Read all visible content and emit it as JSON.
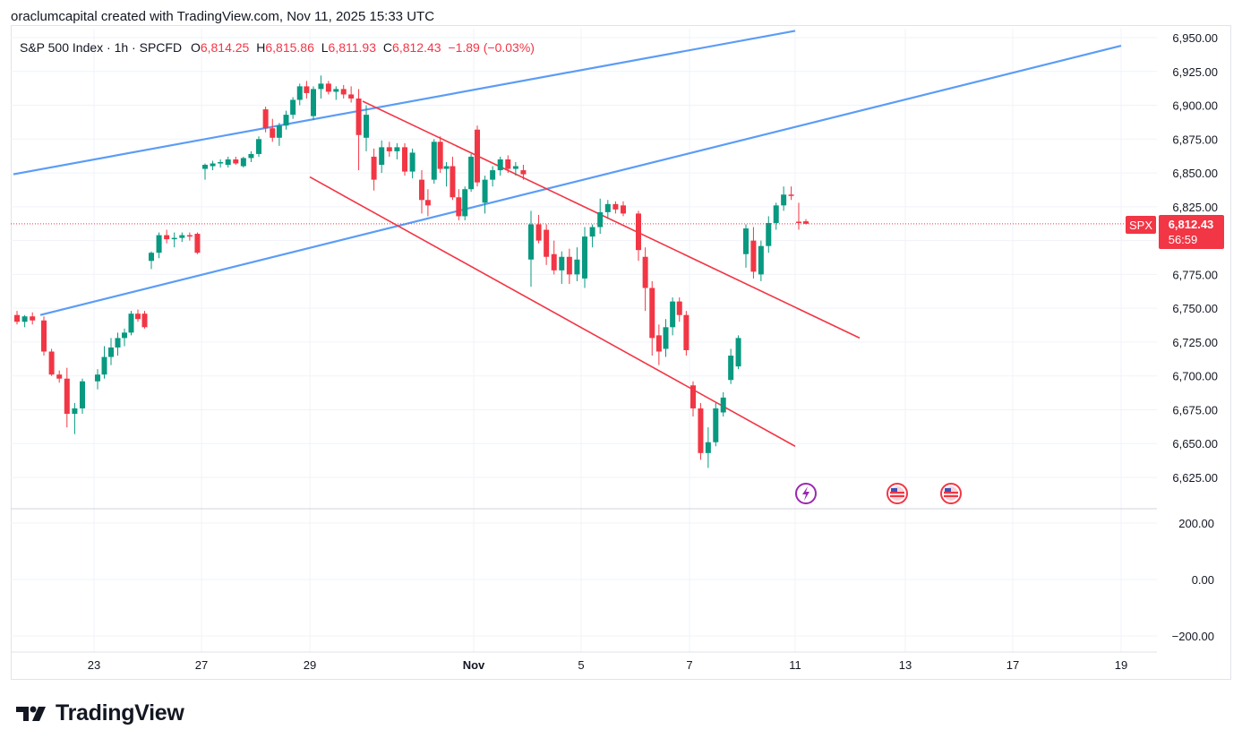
{
  "header": {
    "attribution": "oraclumcapital created with TradingView.com, Nov 11, 2025 15:33 UTC"
  },
  "legend": {
    "symbol": "S&P 500 Index · 1h · SPCFD",
    "o_label": "O",
    "o_value": "6,814.25",
    "h_label": "H",
    "h_value": "6,815.86",
    "l_label": "L",
    "l_value": "6,811.93",
    "c_label": "C",
    "c_value": "6,812.43",
    "change": "−1.89 (−0.03%)"
  },
  "price_badge": {
    "ticker": "SPX",
    "price": "6,812.43",
    "countdown": "56:59"
  },
  "footer": {
    "brand": "TradingView"
  },
  "colors": {
    "up": "#089981",
    "down": "#f23645",
    "channel_blue": "#5b9cf6",
    "channel_red": "#f23645",
    "grid": "#f0f3fa"
  },
  "chart_data": {
    "type": "candlestick",
    "symbol": "SPX",
    "timeframe": "1h",
    "ylim": [
      6615,
      6960
    ],
    "price_ticks": [
      "6,625.00",
      "6,650.00",
      "6,675.00",
      "6,700.00",
      "6,725.00",
      "6,750.00",
      "6,775.00",
      "6,800.00",
      "6,825.00",
      "6,850.00",
      "6,875.00",
      "6,900.00",
      "6,925.00",
      "6,950.00"
    ],
    "price_tick_values": [
      6625,
      6650,
      6675,
      6700,
      6725,
      6750,
      6775,
      6800,
      6825,
      6850,
      6875,
      6900,
      6925,
      6950
    ],
    "indicator_ticks": [
      "200.00",
      "0.00",
      "−200.00"
    ],
    "indicator_tick_values": [
      200,
      0,
      -200
    ],
    "x_ticks": [
      "23",
      "27",
      "29",
      "Nov",
      "5",
      "7",
      "11",
      "13",
      "17",
      "19"
    ],
    "x_tick_days": [
      "Oct 23",
      "Oct 27",
      "Oct 29",
      "Nov 3",
      "Nov 5",
      "Nov 7",
      "Nov 11",
      "Nov 13",
      "Nov 17",
      "Nov 19"
    ],
    "last_price": 6812.43,
    "candles": [
      {
        "d": "Oct 21",
        "o": 6745,
        "h": 6748,
        "l": 6738,
        "c": 6740
      },
      {
        "d": "Oct 21",
        "o": 6740,
        "h": 6745,
        "l": 6736,
        "c": 6744
      },
      {
        "d": "Oct 21",
        "o": 6744,
        "h": 6747,
        "l": 6738,
        "c": 6741
      },
      {
        "d": "Oct 22",
        "o": 6741,
        "h": 6744,
        "l": 6715,
        "c": 6718
      },
      {
        "d": "Oct 22",
        "o": 6718,
        "h": 6720,
        "l": 6700,
        "c": 6701
      },
      {
        "d": "Oct 22",
        "o": 6701,
        "h": 6704,
        "l": 6695,
        "c": 6698
      },
      {
        "d": "Oct 22",
        "o": 6698,
        "h": 6706,
        "l": 6662,
        "c": 6672
      },
      {
        "d": "Oct 22",
        "o": 6672,
        "h": 6680,
        "l": 6657,
        "c": 6676
      },
      {
        "d": "Oct 22",
        "o": 6676,
        "h": 6698,
        "l": 6672,
        "c": 6696
      },
      {
        "d": "Oct 23",
        "o": 6696,
        "h": 6705,
        "l": 6690,
        "c": 6701
      },
      {
        "d": "Oct 23",
        "o": 6701,
        "h": 6722,
        "l": 6698,
        "c": 6714
      },
      {
        "d": "Oct 23",
        "o": 6714,
        "h": 6728,
        "l": 6708,
        "c": 6721
      },
      {
        "d": "Oct 23",
        "o": 6721,
        "h": 6732,
        "l": 6715,
        "c": 6728
      },
      {
        "d": "Oct 23",
        "o": 6728,
        "h": 6735,
        "l": 6722,
        "c": 6732
      },
      {
        "d": "Oct 23",
        "o": 6732,
        "h": 6748,
        "l": 6730,
        "c": 6746
      },
      {
        "d": "Oct 23",
        "o": 6746,
        "h": 6749,
        "l": 6740,
        "c": 6742
      },
      {
        "d": "Oct 23",
        "o": 6746,
        "h": 6748,
        "l": 6735,
        "c": 6736
      },
      {
        "d": "Oct 24",
        "o": 6785,
        "h": 6792,
        "l": 6779,
        "c": 6791
      },
      {
        "d": "Oct 24",
        "o": 6791,
        "h": 6806,
        "l": 6787,
        "c": 6804
      },
      {
        "d": "Oct 24",
        "o": 6804,
        "h": 6808,
        "l": 6798,
        "c": 6801
      },
      {
        "d": "Oct 24",
        "o": 6801,
        "h": 6806,
        "l": 6795,
        "c": 6802
      },
      {
        "d": "Oct 24",
        "o": 6802,
        "h": 6806,
        "l": 6799,
        "c": 6804
      },
      {
        "d": "Oct 24",
        "o": 6804,
        "h": 6806,
        "l": 6800,
        "c": 6803
      },
      {
        "d": "Oct 24",
        "o": 6805,
        "h": 6806,
        "l": 6790,
        "c": 6791
      },
      {
        "d": "Oct 27",
        "o": 6853,
        "h": 6857,
        "l": 6845,
        "c": 6856
      },
      {
        "d": "Oct 27",
        "o": 6855,
        "h": 6859,
        "l": 6852,
        "c": 6857
      },
      {
        "d": "Oct 27",
        "o": 6857,
        "h": 6860,
        "l": 6854,
        "c": 6858
      },
      {
        "d": "Oct 27",
        "o": 6856,
        "h": 6862,
        "l": 6854,
        "c": 6860
      },
      {
        "d": "Oct 27",
        "o": 6860,
        "h": 6862,
        "l": 6856,
        "c": 6857
      },
      {
        "d": "Oct 27",
        "o": 6855,
        "h": 6862,
        "l": 6854,
        "c": 6861
      },
      {
        "d": "Oct 27",
        "o": 6861,
        "h": 6866,
        "l": 6858,
        "c": 6864
      },
      {
        "d": "Oct 28",
        "o": 6864,
        "h": 6877,
        "l": 6862,
        "c": 6875
      },
      {
        "d": "Oct 28",
        "o": 6897,
        "h": 6899,
        "l": 6880,
        "c": 6883
      },
      {
        "d": "Oct 28",
        "o": 6883,
        "h": 6890,
        "l": 6873,
        "c": 6876
      },
      {
        "d": "Oct 28",
        "o": 6876,
        "h": 6887,
        "l": 6870,
        "c": 6885
      },
      {
        "d": "Oct 28",
        "o": 6885,
        "h": 6896,
        "l": 6882,
        "c": 6893
      },
      {
        "d": "Oct 28",
        "o": 6893,
        "h": 6906,
        "l": 6890,
        "c": 6904
      },
      {
        "d": "Oct 28",
        "o": 6904,
        "h": 6916,
        "l": 6900,
        "c": 6914
      },
      {
        "d": "Oct 28",
        "o": 6914,
        "h": 6918,
        "l": 6905,
        "c": 6909
      },
      {
        "d": "Oct 29",
        "o": 6892,
        "h": 6914,
        "l": 6889,
        "c": 6912
      },
      {
        "d": "Oct 29",
        "o": 6912,
        "h": 6922,
        "l": 6905,
        "c": 6916
      },
      {
        "d": "Oct 29",
        "o": 6916,
        "h": 6918,
        "l": 6908,
        "c": 6910
      },
      {
        "d": "Oct 29",
        "o": 6910,
        "h": 6914,
        "l": 6904,
        "c": 6912
      },
      {
        "d": "Oct 29",
        "o": 6912,
        "h": 6915,
        "l": 6905,
        "c": 6908
      },
      {
        "d": "Oct 29",
        "o": 6908,
        "h": 6914,
        "l": 6902,
        "c": 6905
      },
      {
        "d": "Oct 29",
        "o": 6905,
        "h": 6912,
        "l": 6852,
        "c": 6878
      },
      {
        "d": "Oct 30",
        "o": 6876,
        "h": 6900,
        "l": 6866,
        "c": 6893
      },
      {
        "d": "Oct 30",
        "o": 6862,
        "h": 6868,
        "l": 6837,
        "c": 6845
      },
      {
        "d": "Oct 30",
        "o": 6856,
        "h": 6874,
        "l": 6850,
        "c": 6869
      },
      {
        "d": "Oct 30",
        "o": 6869,
        "h": 6873,
        "l": 6862,
        "c": 6866
      },
      {
        "d": "Oct 30",
        "o": 6866,
        "h": 6872,
        "l": 6860,
        "c": 6869
      },
      {
        "d": "Oct 30",
        "o": 6869,
        "h": 6872,
        "l": 6848,
        "c": 6851
      },
      {
        "d": "Oct 30",
        "o": 6851,
        "h": 6868,
        "l": 6846,
        "c": 6865
      },
      {
        "d": "Oct 31",
        "o": 6845,
        "h": 6852,
        "l": 6820,
        "c": 6830
      },
      {
        "d": "Oct 31",
        "o": 6830,
        "h": 6838,
        "l": 6818,
        "c": 6826
      },
      {
        "d": "Oct 31",
        "o": 6845,
        "h": 6875,
        "l": 6842,
        "c": 6873
      },
      {
        "d": "Oct 31",
        "o": 6873,
        "h": 6877,
        "l": 6850,
        "c": 6853
      },
      {
        "d": "Oct 31",
        "o": 6853,
        "h": 6858,
        "l": 6840,
        "c": 6855
      },
      {
        "d": "Oct 31",
        "o": 6855,
        "h": 6862,
        "l": 6830,
        "c": 6832
      },
      {
        "d": "Oct 31",
        "o": 6832,
        "h": 6838,
        "l": 6815,
        "c": 6818
      },
      {
        "d": "Oct 31",
        "o": 6818,
        "h": 6840,
        "l": 6815,
        "c": 6838
      },
      {
        "d": "Oct 31",
        "o": 6838,
        "h": 6864,
        "l": 6836,
        "c": 6862
      },
      {
        "d": "Nov 3",
        "o": 6882,
        "h": 6885,
        "l": 6840,
        "c": 6843
      },
      {
        "d": "Nov 3",
        "o": 6828,
        "h": 6848,
        "l": 6820,
        "c": 6845
      },
      {
        "d": "Nov 3",
        "o": 6845,
        "h": 6855,
        "l": 6840,
        "c": 6852
      },
      {
        "d": "Nov 3",
        "o": 6852,
        "h": 6862,
        "l": 6848,
        "c": 6860
      },
      {
        "d": "Nov 3",
        "o": 6860,
        "h": 6863,
        "l": 6850,
        "c": 6853
      },
      {
        "d": "Nov 3",
        "o": 6853,
        "h": 6858,
        "l": 6848,
        "c": 6855
      },
      {
        "d": "Nov 3",
        "o": 6852,
        "h": 6856,
        "l": 6845,
        "c": 6849
      },
      {
        "d": "Nov 4",
        "o": 6786,
        "h": 6822,
        "l": 6766,
        "c": 6812
      },
      {
        "d": "Nov 4",
        "o": 6812,
        "h": 6819,
        "l": 6798,
        "c": 6800
      },
      {
        "d": "Nov 4",
        "o": 6808,
        "h": 6812,
        "l": 6782,
        "c": 6788
      },
      {
        "d": "Nov 4",
        "o": 6790,
        "h": 6800,
        "l": 6775,
        "c": 6778
      },
      {
        "d": "Nov 4",
        "o": 6778,
        "h": 6792,
        "l": 6768,
        "c": 6788
      },
      {
        "d": "Nov 4",
        "o": 6788,
        "h": 6794,
        "l": 6768,
        "c": 6775
      },
      {
        "d": "Nov 4",
        "o": 6775,
        "h": 6795,
        "l": 6770,
        "c": 6786
      },
      {
        "d": "Nov 5",
        "o": 6772,
        "h": 6810,
        "l": 6765,
        "c": 6803
      },
      {
        "d": "Nov 5",
        "o": 6803,
        "h": 6812,
        "l": 6795,
        "c": 6810
      },
      {
        "d": "Nov 5",
        "o": 6810,
        "h": 6831,
        "l": 6805,
        "c": 6821
      },
      {
        "d": "Nov 5",
        "o": 6821,
        "h": 6830,
        "l": 6816,
        "c": 6827
      },
      {
        "d": "Nov 5",
        "o": 6827,
        "h": 6829,
        "l": 6820,
        "c": 6823
      },
      {
        "d": "Nov 5",
        "o": 6826,
        "h": 6829,
        "l": 6818,
        "c": 6820
      },
      {
        "d": "Nov 6",
        "o": 6820,
        "h": 6822,
        "l": 6785,
        "c": 6793
      },
      {
        "d": "Nov 6",
        "o": 6788,
        "h": 6795,
        "l": 6748,
        "c": 6765
      },
      {
        "d": "Nov 6",
        "o": 6765,
        "h": 6770,
        "l": 6715,
        "c": 6728
      },
      {
        "d": "Nov 6",
        "o": 6730,
        "h": 6738,
        "l": 6708,
        "c": 6718
      },
      {
        "d": "Nov 6",
        "o": 6720,
        "h": 6742,
        "l": 6714,
        "c": 6736
      },
      {
        "d": "Nov 6",
        "o": 6736,
        "h": 6758,
        "l": 6730,
        "c": 6755
      },
      {
        "d": "Nov 6",
        "o": 6755,
        "h": 6758,
        "l": 6740,
        "c": 6745
      },
      {
        "d": "Nov 6",
        "o": 6745,
        "h": 6748,
        "l": 6715,
        "c": 6719
      },
      {
        "d": "Nov 7",
        "o": 6693,
        "h": 6696,
        "l": 6670,
        "c": 6676
      },
      {
        "d": "Nov 7",
        "o": 6676,
        "h": 6680,
        "l": 6638,
        "c": 6643
      },
      {
        "d": "Nov 7",
        "o": 6643,
        "h": 6662,
        "l": 6632,
        "c": 6651
      },
      {
        "d": "Nov 7",
        "o": 6651,
        "h": 6680,
        "l": 6648,
        "c": 6676
      },
      {
        "d": "Nov 7",
        "o": 6673,
        "h": 6688,
        "l": 6670,
        "c": 6684
      },
      {
        "d": "Nov 7",
        "o": 6697,
        "h": 6720,
        "l": 6694,
        "c": 6715
      },
      {
        "d": "Nov 7",
        "o": 6707,
        "h": 6730,
        "l": 6705,
        "c": 6728
      },
      {
        "d": "Nov 10",
        "o": 6790,
        "h": 6812,
        "l": 6780,
        "c": 6809
      },
      {
        "d": "Nov 10",
        "o": 6800,
        "h": 6810,
        "l": 6772,
        "c": 6777
      },
      {
        "d": "Nov 10",
        "o": 6775,
        "h": 6800,
        "l": 6770,
        "c": 6796
      },
      {
        "d": "Nov 10",
        "o": 6796,
        "h": 6818,
        "l": 6791,
        "c": 6813
      },
      {
        "d": "Nov 10",
        "o": 6813,
        "h": 6828,
        "l": 6808,
        "c": 6826
      },
      {
        "d": "Nov 10",
        "o": 6826,
        "h": 6840,
        "l": 6822,
        "c": 6834
      },
      {
        "d": "Nov 10",
        "o": 6834,
        "h": 6840,
        "l": 6830,
        "c": 6833
      },
      {
        "d": "Nov 11",
        "o": 6814,
        "h": 6828,
        "l": 6808,
        "c": 6813
      },
      {
        "d": "Nov 11",
        "o": 6814.25,
        "h": 6815.86,
        "l": 6811.93,
        "c": 6812.43
      }
    ],
    "channels": [
      {
        "name": "",
        "color": "blue",
        "start": {
          "d": "Oct 21",
          "p": 6849
        },
        "end": {
          "d": "Nov 11",
          "p": 6955
        }
      },
      {
        "name": "",
        "color": "blue",
        "start": {
          "d": "Oct 22",
          "p": 6745
        },
        "end": {
          "d": "Nov 19",
          "p": 6944
        }
      },
      {
        "name": "",
        "color": "red",
        "start": {
          "d": "Oct 30",
          "p": 6903
        },
        "end": {
          "d": "Nov 12",
          "p": 6728
        }
      },
      {
        "name": "",
        "color": "red",
        "start": {
          "d": "Oct 29",
          "p": 6847
        },
        "end": {
          "d": "Nov 11",
          "p": 6648
        }
      }
    ],
    "events": [
      "earnings-icon",
      "us-flag-icon",
      "us-flag-icon"
    ],
    "grid": true,
    "legend": "top-left"
  }
}
